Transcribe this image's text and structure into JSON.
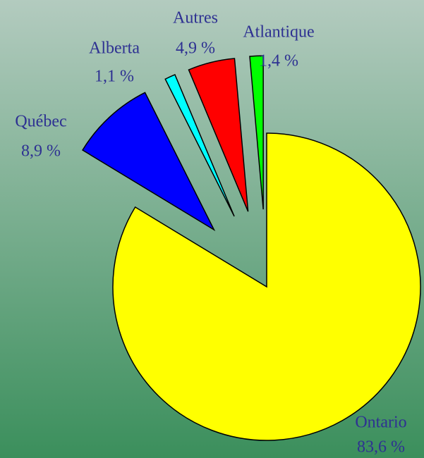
{
  "chart_data": {
    "type": "pie",
    "categories": [
      "Ontario",
      "Québec",
      "Alberta",
      "Autres",
      "Atlantique"
    ],
    "values": [
      83.6,
      8.9,
      1.1,
      4.9,
      1.4
    ],
    "value_labels": [
      "83,6 %",
      "8,9 %",
      "1,1 %",
      "4,9 %",
      "1,4 %"
    ],
    "colors": [
      "#ffff00",
      "#0000ff",
      "#00ffff",
      "#ff0000",
      "#00ff00"
    ]
  }
}
